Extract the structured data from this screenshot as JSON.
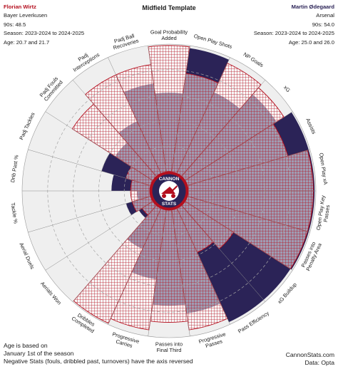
{
  "header": {
    "title": "Midfield Template",
    "left": {
      "name": "Florian Wirtz",
      "team": "Bayer Leverkusen",
      "nineties": "90s: 48.5",
      "season": "Season: 2023-2024 to 2024-2025",
      "age": "Age: 20.7 and 21.7"
    },
    "right": {
      "name": "Martin Ødegaard",
      "team": "Arsenal",
      "nineties": "90s: 54.0",
      "season": "Season: 2023-2024 to 2024-2025",
      "age": "Age: 25.0 and 26.0"
    }
  },
  "logo": {
    "top_text": "CANNON",
    "bottom_text": "STATS"
  },
  "footer": {
    "line1": "Age is based on",
    "line2": "January 1st of the season",
    "line3": "Negative Stats (fouls, dribbled past, turnovers) have the axis reversed",
    "site": "CannonStats.com",
    "source": "Data: Opta"
  },
  "colors": {
    "wirtz": "#b40f1e",
    "odegaard": "#2b2357",
    "slice_bg": "#efefef",
    "ring": "#a5a5a5"
  },
  "chart_data": {
    "type": "radar",
    "title": "Midfield Template",
    "value_scale": "percentile",
    "range": [
      0,
      100
    ],
    "categories": [
      "Goal Probability Added",
      "Open Play Shots",
      "NP Goals",
      "xG",
      "Assists",
      "Open Play xA",
      "Open Play Key Passes",
      "Passes into Penalty Area",
      "xG Buildup",
      "Pass Efficiency",
      "Progressive Passes",
      "Passes into Final Third",
      "Progressive Carries",
      "Dribbles Completed",
      "Aerials Won",
      "Aerial Duels",
      "Tackle %",
      "Drib Past %",
      "Padj Tackles",
      "Padj Fouls Committed",
      "Padj Interceptions",
      "Padj Ball Recoveries"
    ],
    "series": [
      {
        "name": "Florian Wirtz",
        "values": [
          99,
          78,
          95,
          92,
          82,
          98,
          98,
          98,
          45,
          38,
          95,
          88,
          95,
          99,
          10,
          15,
          15,
          15,
          20,
          75,
          85,
          85
        ]
      },
      {
        "name": "Martin Ødegaard",
        "values": [
          62,
          98,
          70,
          85,
          99,
          99,
          99,
          99,
          98,
          98,
          82,
          75,
          55,
          35,
          13,
          20,
          10,
          30,
          40,
          35,
          45,
          70
        ]
      }
    ]
  }
}
